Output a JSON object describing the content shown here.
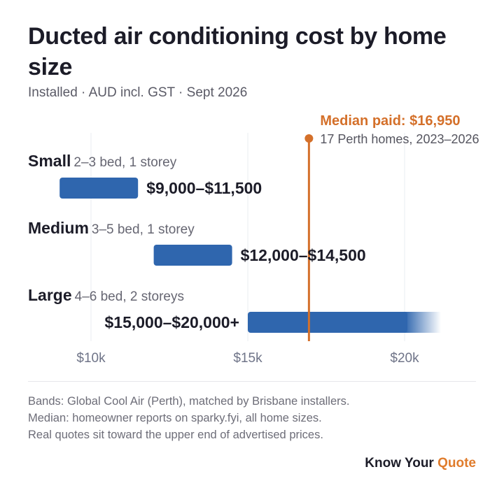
{
  "title": "Ducted air conditioning cost by home size",
  "subtitle": "Installed · AUD incl. GST · Sept 2026",
  "colors": {
    "bar": "#2f66ae",
    "median": "#d4702a",
    "grid": "#e9edf1",
    "text": "#1c1c28",
    "muted": "#666672"
  },
  "chart_data": {
    "type": "bar",
    "orientation": "horizontal-range",
    "categories": [
      {
        "name": "Small",
        "desc": "2–3 bed, 1 storey",
        "min": 9000,
        "max": 11500,
        "label": "$9,000–$11,500",
        "open_ended": false
      },
      {
        "name": "Medium",
        "desc": "3–5 bed, 1 storey",
        "min": 12000,
        "max": 14500,
        "label": "$12,000–$14,500",
        "open_ended": false
      },
      {
        "name": "Large",
        "desc": "4–6 bed, 2 storeys",
        "min": 15000,
        "max": 20000,
        "label": "$15,000–$20,000+",
        "open_ended": true
      }
    ],
    "xticks": [
      {
        "value": 10000,
        "label": "$10k"
      },
      {
        "value": 15000,
        "label": "$15k"
      },
      {
        "value": 20000,
        "label": "$20k"
      }
    ],
    "xlim": [
      8000,
      22500
    ],
    "median": {
      "value": 16950,
      "label": "Median paid: $16,950",
      "note": "17 Perth homes, 2023–2026"
    },
    "grid": true
  },
  "footnotes": [
    "Bands: Global Cool Air (Perth), matched by Brisbane installers.",
    "Median: homeowner reports on sparky.fyi, all home sizes.",
    "Real quotes sit toward the upper end of advertised prices."
  ],
  "brand": {
    "main": "Know Your",
    "accent": "Quote"
  }
}
